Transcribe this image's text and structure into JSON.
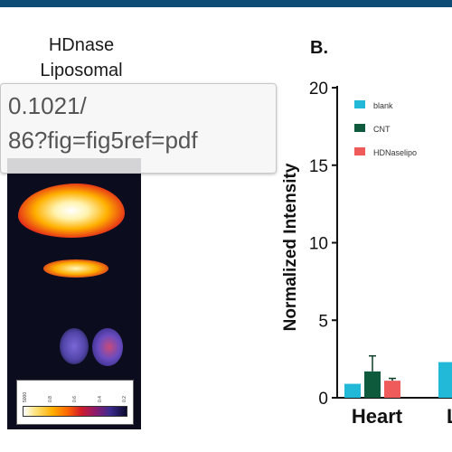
{
  "panel_a": {
    "title_line1": "HDnase",
    "title_line2": "Liposomal",
    "colorbar_ticks": [
      "5000",
      "0.8",
      "0.6",
      "0.4",
      "0.2"
    ]
  },
  "tooltip": {
    "line1": "0.1021/",
    "line2": "86?fig=fig5ref=pdf"
  },
  "panel_b": {
    "label": "B."
  },
  "chart_data": {
    "type": "bar",
    "title": "",
    "xlabel": "",
    "ylabel": "Normalized Intensity",
    "ylim": [
      0,
      20
    ],
    "yticks": [
      0,
      5,
      10,
      15,
      20
    ],
    "categories": [
      "Heart",
      "L"
    ],
    "series": [
      {
        "name": "blank",
        "color": "#22b8d8",
        "values": [
          0.9,
          2.3
        ],
        "errors": [
          0,
          0
        ]
      },
      {
        "name": "CNT",
        "color": "#0e5a3c",
        "values": [
          1.7,
          null
        ],
        "errors": [
          1.0,
          0
        ]
      },
      {
        "name": "HDNaselipo",
        "color": "#ef5b5b",
        "values": [
          1.1,
          null
        ],
        "errors": [
          0.15,
          0
        ]
      }
    ],
    "legend": "top-left"
  }
}
